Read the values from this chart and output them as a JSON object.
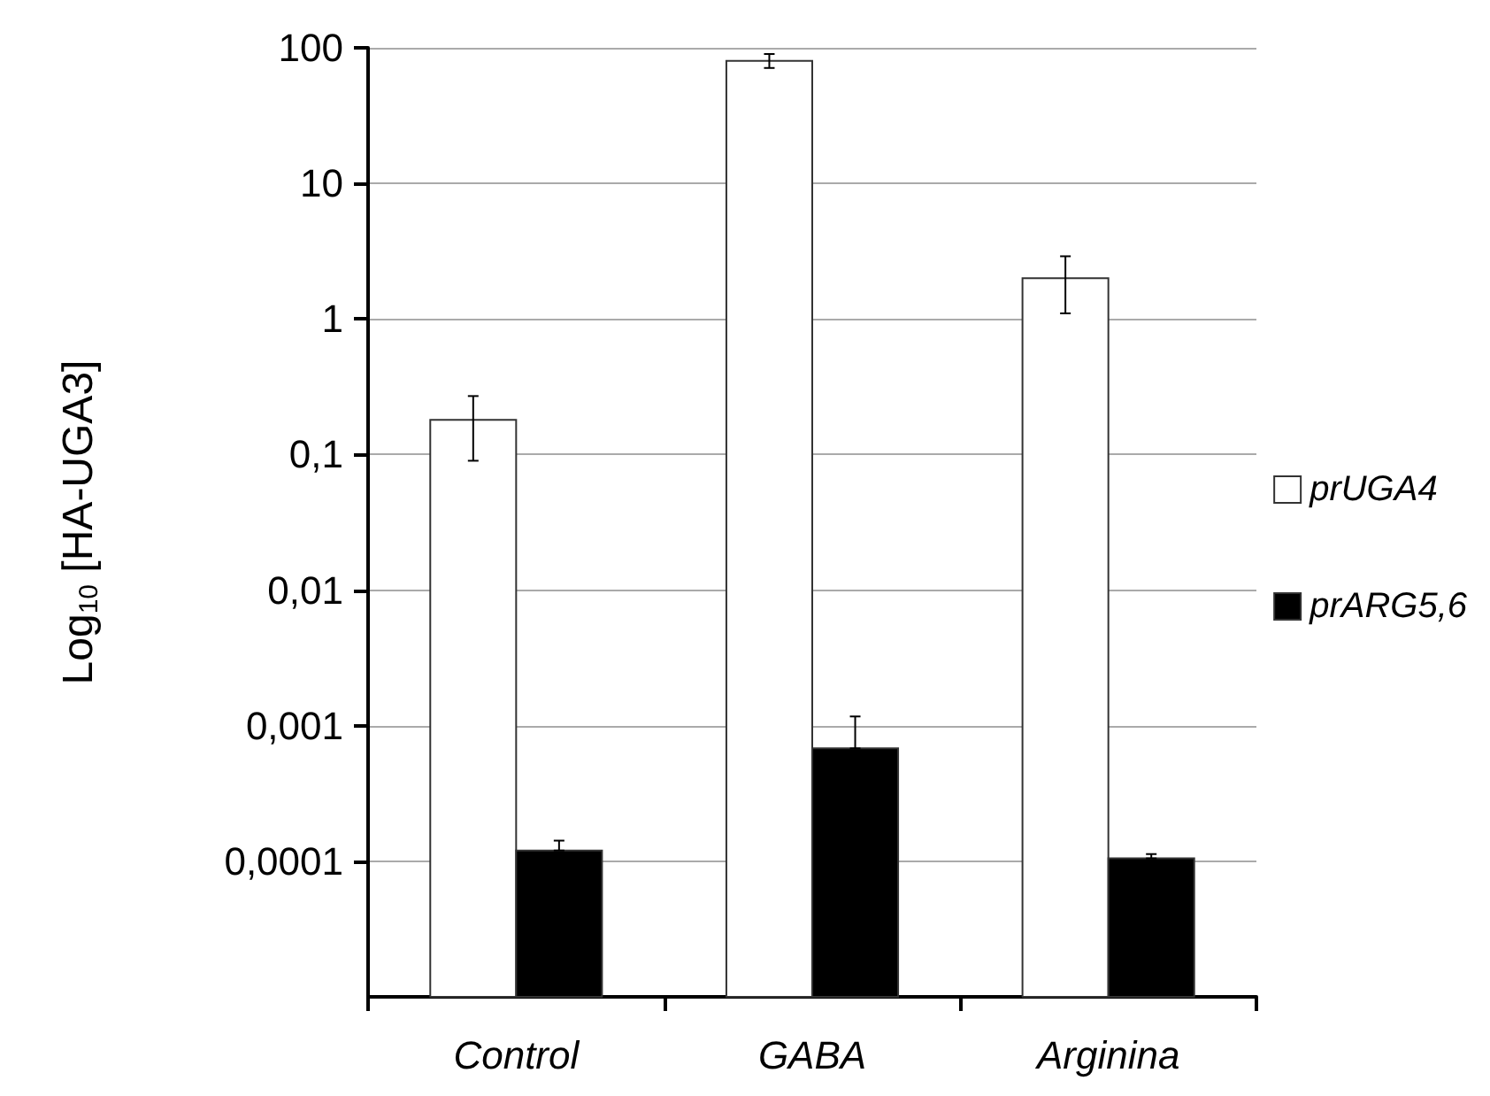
{
  "chart_data": {
    "type": "bar",
    "ylabel": "Log$_{10}$ [HA-UGA3]",
    "categories": [
      "Control",
      "GABA",
      "Arginina"
    ],
    "series": [
      {
        "name": "prUGA4",
        "color": "#ffffff",
        "values": [
          0.18,
          80,
          2.0
        ],
        "errors": [
          [
            0.09,
            0.27
          ],
          [
            71,
            90
          ],
          [
            1.1,
            2.9
          ]
        ]
      },
      {
        "name": "prARG5,6",
        "color": "#000000",
        "values": [
          0.00012,
          0.00068,
          0.000105
        ],
        "errors": [
          [
            0.00012,
            0.000142
          ],
          [
            0.00068,
            0.00117
          ],
          [
            0.000105,
            0.000113
          ]
        ]
      }
    ],
    "log": "y",
    "ylim": [
      1e-05,
      100
    ],
    "yticks": [
      {
        "value": 0.0001,
        "label": "0,0001"
      },
      {
        "value": 0.001,
        "label": "0,001"
      },
      {
        "value": 0.01,
        "label": "0,01"
      },
      {
        "value": 0.1,
        "label": "0,1"
      },
      1,
      10,
      100
    ],
    "grid": "y",
    "legend": "right"
  }
}
